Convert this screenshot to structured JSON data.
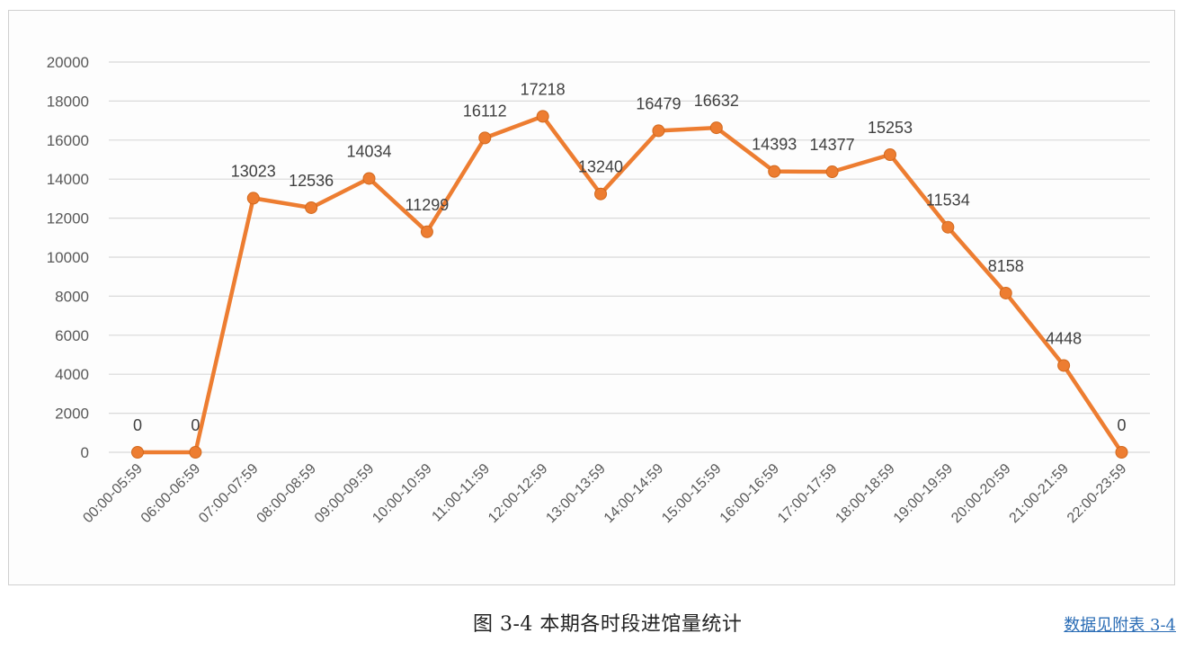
{
  "chart_data": {
    "type": "line",
    "title": "图 3-4 本期各时段进馆量统计",
    "xlabel": "",
    "ylabel": "",
    "ylim": [
      0,
      20000
    ],
    "yticks": [
      0,
      2000,
      4000,
      6000,
      8000,
      10000,
      12000,
      14000,
      16000,
      18000,
      20000
    ],
    "grid": true,
    "legend": "none",
    "categories": [
      "00:00-05:59",
      "06:00-06:59",
      "07:00-07:59",
      "08:00-08:59",
      "09:00-09:59",
      "10:00-10:59",
      "11:00-11:59",
      "12:00-12:59",
      "13:00-13:59",
      "14:00-14:59",
      "15:00-15:59",
      "16:00-16:59",
      "17:00-17:59",
      "18:00-18:59",
      "19:00-19:59",
      "20:00-20:59",
      "21:00-21:59",
      "22:00-23:59"
    ],
    "series": [
      {
        "name": "进馆量",
        "color": "#ed7d31",
        "values": [
          0,
          0,
          13023,
          12536,
          14034,
          11299,
          16112,
          17218,
          13240,
          16479,
          16632,
          14393,
          14377,
          15253,
          11534,
          8158,
          4448,
          0
        ]
      }
    ],
    "data_labels": [
      "0",
      "0",
      "13023",
      "12536",
      "14034",
      "11299",
      "16112",
      "17218",
      "13240",
      "16479",
      "16632",
      "14393",
      "14377",
      "15253",
      "11534",
      "8158",
      "4448",
      "0"
    ]
  },
  "caption": {
    "figure_title": "图 3-4  本期各时段进馆量统计",
    "source_link": "数据见附表 3-4"
  },
  "colors": {
    "line": "#ed7d31",
    "marker": "#ed7d31",
    "marker_edge": "#d2691e",
    "grid": "#d9d9d9",
    "axis_text": "#595959",
    "label_text": "#404040",
    "link": "#2a6cb5"
  }
}
